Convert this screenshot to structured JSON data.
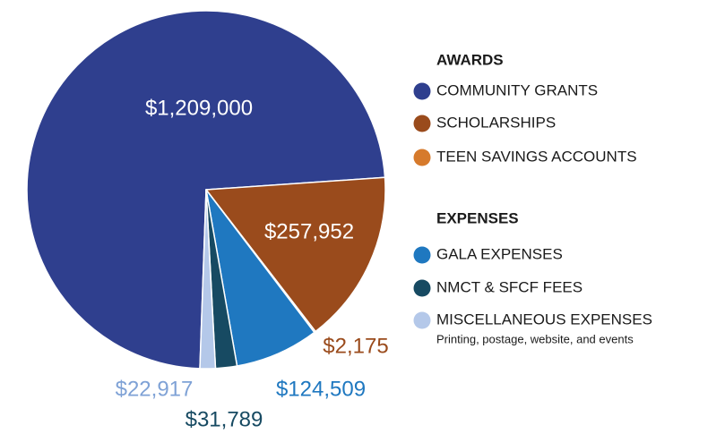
{
  "chart_data": {
    "type": "pie",
    "groups": [
      {
        "title": "AWARDS",
        "categories": [
          "COMMUNITY GRANTS",
          "SCHOLARSHIPS",
          "TEEN SAVINGS ACCOUNTS"
        ],
        "values": [
          1209000,
          257952,
          2175
        ],
        "value_labels": [
          "$1,209,000",
          "$257,952",
          "$2,175"
        ],
        "colors": [
          "#2f3f8e",
          "#9a4b1c",
          "#d67a2c"
        ]
      },
      {
        "title": "EXPENSES",
        "categories": [
          "GALA EXPENSES",
          "NMCT & SFCF FEES",
          "MISCELLANEOUS EXPENSES"
        ],
        "values": [
          124509,
          31789,
          22917
        ],
        "value_labels": [
          "$124,509",
          "$31,789",
          "$22,917"
        ],
        "colors": [
          "#1f78c0",
          "#174a62",
          "#b4c8e9"
        ],
        "note": "Printing, postage, website, and events"
      }
    ]
  }
}
